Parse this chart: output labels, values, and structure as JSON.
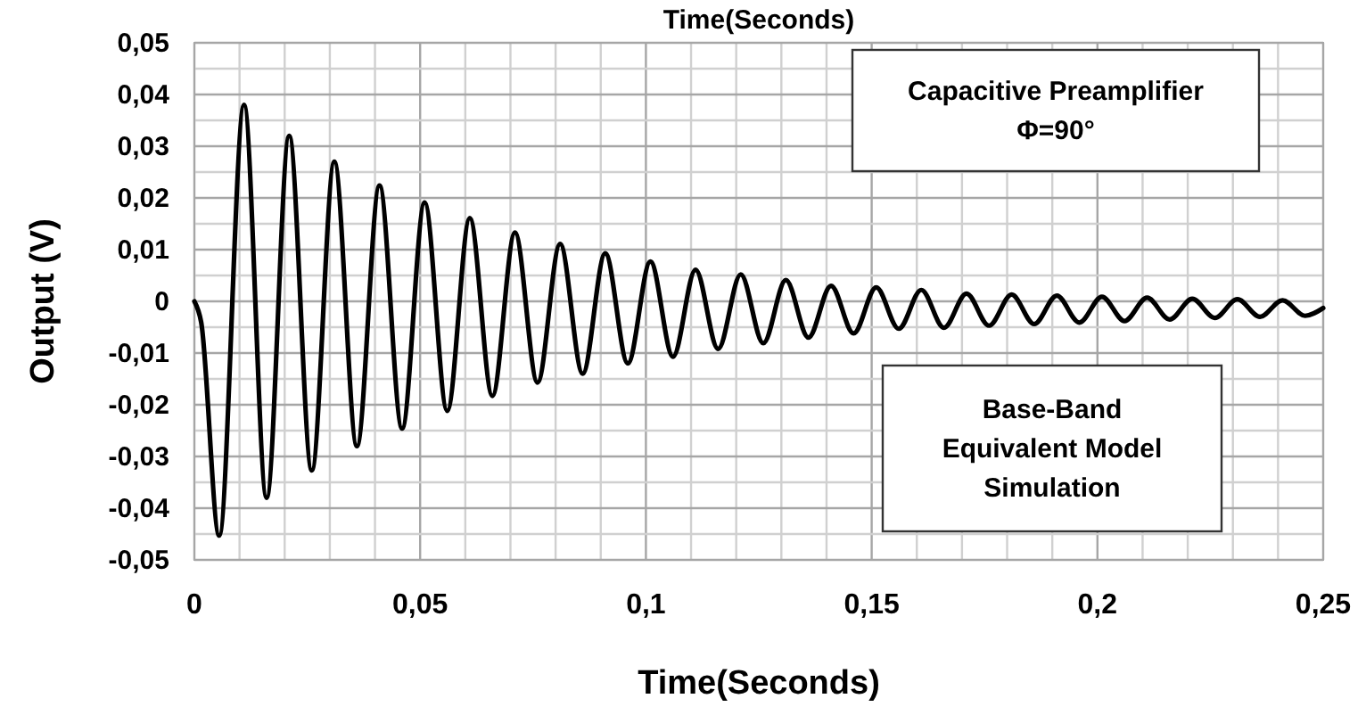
{
  "chart_data": {
    "type": "line",
    "title": "Time(Seconds)",
    "xlabel": "Time(Seconds)",
    "ylabel": "Output (V)",
    "annotations": [
      "Capacitive Preamplifier\nΦ=90°",
      "Base-Band\nEquivalent Model\nSimulation"
    ],
    "xlim": [
      0,
      0.25
    ],
    "ylim": [
      -0.05,
      0.05
    ],
    "xticks": [
      {
        "value": 0,
        "label": "0"
      },
      {
        "value": 0.01,
        "label": null
      },
      {
        "value": 0.02,
        "label": null
      },
      {
        "value": 0.03,
        "label": null
      },
      {
        "value": 0.04,
        "label": null
      },
      {
        "value": 0.05,
        "label": "0,05"
      },
      {
        "value": 0.06,
        "label": null
      },
      {
        "value": 0.07,
        "label": null
      },
      {
        "value": 0.08,
        "label": null
      },
      {
        "value": 0.09,
        "label": null
      },
      {
        "value": 0.1,
        "label": "0,1"
      },
      {
        "value": 0.11,
        "label": null
      },
      {
        "value": 0.12,
        "label": null
      },
      {
        "value": 0.13,
        "label": null
      },
      {
        "value": 0.14,
        "label": null
      },
      {
        "value": 0.15,
        "label": "0,15"
      },
      {
        "value": 0.16,
        "label": null
      },
      {
        "value": 0.17,
        "label": null
      },
      {
        "value": 0.18,
        "label": null
      },
      {
        "value": 0.19,
        "label": null
      },
      {
        "value": 0.2,
        "label": "0,2"
      },
      {
        "value": 0.21,
        "label": null
      },
      {
        "value": 0.22,
        "label": null
      },
      {
        "value": 0.23,
        "label": null
      },
      {
        "value": 0.24,
        "label": null
      },
      {
        "value": 0.25,
        "label": "0,25"
      }
    ],
    "yticks": [
      {
        "value": -0.05,
        "label": "-0,05"
      },
      {
        "value": -0.045,
        "label": null
      },
      {
        "value": -0.04,
        "label": "-0,04"
      },
      {
        "value": -0.035,
        "label": null
      },
      {
        "value": -0.03,
        "label": "-0,03"
      },
      {
        "value": -0.025,
        "label": null
      },
      {
        "value": -0.02,
        "label": "-0,02"
      },
      {
        "value": -0.015,
        "label": null
      },
      {
        "value": -0.01,
        "label": "-0,01"
      },
      {
        "value": -0.005,
        "label": null
      },
      {
        "value": 0,
        "label": "0"
      },
      {
        "value": 0.005,
        "label": null
      },
      {
        "value": 0.01,
        "label": "0,01"
      },
      {
        "value": 0.015,
        "label": null
      },
      {
        "value": 0.02,
        "label": "0,02"
      },
      {
        "value": 0.025,
        "label": null
      },
      {
        "value": 0.03,
        "label": "0,03"
      },
      {
        "value": 0.035,
        "label": null
      },
      {
        "value": 0.04,
        "label": "0,04"
      },
      {
        "value": 0.045,
        "label": null
      },
      {
        "value": 0.05,
        "label": "0,05"
      }
    ],
    "grid": true,
    "marker": "none",
    "line_style": "solid",
    "series": [
      {
        "color": "#000000",
        "x": [
          0,
          0.0015,
          0.0055,
          0.011,
          0.016,
          0.021,
          0.026,
          0.031,
          0.036,
          0.041,
          0.046,
          0.051,
          0.056,
          0.061,
          0.066,
          0.071,
          0.076,
          0.081,
          0.086,
          0.091,
          0.096,
          0.101,
          0.106,
          0.111,
          0.116,
          0.121,
          0.126,
          0.131,
          0.136,
          0.141,
          0.146,
          0.151,
          0.156,
          0.161,
          0.166,
          0.171,
          0.176,
          0.181,
          0.186,
          0.191,
          0.196,
          0.201,
          0.206,
          0.211,
          0.216,
          0.221,
          0.226,
          0.231,
          0.236,
          0.241,
          0.246,
          0.25
        ],
        "values": [
          0,
          -0.004,
          -0.0453,
          0.038,
          -0.038,
          0.032,
          -0.0327,
          0.027,
          -0.028,
          0.0224,
          -0.0246,
          0.0191,
          -0.0212,
          0.0161,
          -0.0183,
          0.0133,
          -0.0157,
          0.0111,
          -0.014,
          0.0093,
          -0.012,
          0.0077,
          -0.0107,
          0.0061,
          -0.0092,
          0.0052,
          -0.0081,
          0.0041,
          -0.007,
          0.003,
          -0.0062,
          0.0027,
          -0.0053,
          0.0022,
          -0.0051,
          0.0015,
          -0.0047,
          0.0013,
          -0.0044,
          0.0011,
          -0.0041,
          0.0009,
          -0.0038,
          0.0007,
          -0.0035,
          0.0005,
          -0.0032,
          0.0004,
          -0.003,
          0.0002,
          -0.0028,
          -0.0013
        ]
      }
    ]
  }
}
